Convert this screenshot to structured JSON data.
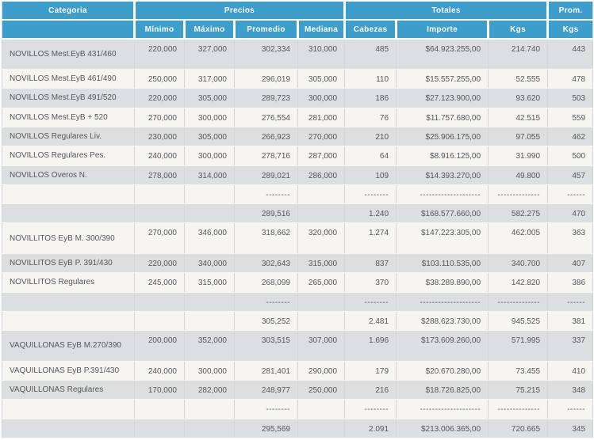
{
  "table": {
    "header": {
      "categoria": "Categoria",
      "precios": "Precios",
      "totales": "Totales",
      "prom": "Prom.",
      "sub": [
        "Mínimo",
        "Máximo",
        "Promedio",
        "Mediana",
        "Cabezas",
        "Importe",
        "Kgs",
        "Kgs"
      ]
    },
    "columns": [
      "categoria",
      "minimo",
      "maximo",
      "promedio",
      "mediana",
      "cabezas",
      "importe",
      "kgs",
      "prom-kgs"
    ],
    "rows": [
      {
        "type": "data",
        "tall": true,
        "cells": [
          "NOVILLOS Mest.EyB 431/460",
          "220,000",
          "327,000",
          "302,334",
          "310,000",
          "485",
          "$64.923.255,00",
          "214.740",
          "443"
        ]
      },
      {
        "type": "data",
        "tall": false,
        "cells": [
          "NOVILLOS Mest.EyB 461/490",
          "250,000",
          "317,000",
          "296,019",
          "305,000",
          "110",
          "$15.557.255,00",
          "52.555",
          "478"
        ]
      },
      {
        "type": "data",
        "tall": false,
        "cells": [
          "NOVILLOS Mest.EyB 491/520",
          "220,000",
          "305,000",
          "289,723",
          "300,000",
          "186",
          "$27.123.900,00",
          "93.620",
          "503"
        ]
      },
      {
        "type": "data",
        "tall": false,
        "cells": [
          "NOVILLOS Mest.EyB + 520",
          "270,000",
          "300,000",
          "276,554",
          "281,000",
          "76",
          "$11.757.680,00",
          "42.515",
          "559"
        ]
      },
      {
        "type": "data",
        "tall": false,
        "cells": [
          "NOVILLOS Regulares Liv.",
          "230,000",
          "305,000",
          "266,923",
          "270,000",
          "210",
          "$25.906.175,00",
          "97.055",
          "462"
        ]
      },
      {
        "type": "data",
        "tall": false,
        "cells": [
          "NOVILLOS Regulares Pes.",
          "240,000",
          "300,000",
          "278,716",
          "287,000",
          "64",
          "$8.916.125,00",
          "31.990",
          "500"
        ]
      },
      {
        "type": "data",
        "tall": false,
        "cells": [
          "NOVILLOS Overos N.",
          "278,000",
          "314,000",
          "289,021",
          "286,000",
          "109",
          "$14.393.270,00",
          "49.800",
          "457"
        ]
      },
      {
        "type": "dashes",
        "tall": false,
        "cells": [
          "",
          "",
          "",
          "--------",
          "",
          "--------",
          "--------------------",
          "--------------",
          "------"
        ]
      },
      {
        "type": "subtotal",
        "tall": false,
        "cells": [
          "",
          "",
          "",
          "289,516",
          "",
          "1.240",
          "$168.577.660,00",
          "582.275",
          "470"
        ]
      },
      {
        "type": "data",
        "tall": true,
        "cells": [
          "NOVILLITOS EyB M. 300/390",
          "270,000",
          "346,000",
          "318,662",
          "320,000",
          "1.274",
          "$147.223.305,00",
          "462.005",
          "363"
        ]
      },
      {
        "type": "data",
        "tall": false,
        "cells": [
          "NOVILLITOS EyB P. 391/430",
          "220,000",
          "340,000",
          "302,643",
          "315,000",
          "837",
          "$103.110.535,00",
          "340.700",
          "407"
        ]
      },
      {
        "type": "data",
        "tall": false,
        "cells": [
          "NOVILLITOS Regulares",
          "245,000",
          "315,000",
          "268,099",
          "265,000",
          "370",
          "$38.289.890,00",
          "142.820",
          "386"
        ]
      },
      {
        "type": "dashes",
        "tall": false,
        "cells": [
          "",
          "",
          "",
          "--------",
          "",
          "--------",
          "--------------------",
          "--------------",
          "------"
        ]
      },
      {
        "type": "subtotal",
        "tall": false,
        "cells": [
          "",
          "",
          "",
          "305,252",
          "",
          "2.481",
          "$288.623.730,00",
          "945.525",
          "381"
        ]
      },
      {
        "type": "data",
        "tall": true,
        "cells": [
          "VAQUILLONAS EyB M.270/390",
          "200,000",
          "352,000",
          "303,515",
          "307,000",
          "1.696",
          "$173.609.260,00",
          "571.995",
          "337"
        ]
      },
      {
        "type": "data",
        "tall": false,
        "cells": [
          "VAQUILLONAS EyB P.391/430",
          "240,000",
          "300,000",
          "281,401",
          "290,000",
          "179",
          "$20.670.280,00",
          "73.455",
          "410"
        ]
      },
      {
        "type": "data",
        "tall": false,
        "cells": [
          "VAQUILLONAS Regulares",
          "170,000",
          "282,000",
          "248,977",
          "250,000",
          "216",
          "$18.726.825,00",
          "75.215",
          "348"
        ]
      },
      {
        "type": "dashes",
        "tall": false,
        "cells": [
          "",
          "",
          "",
          "--------",
          "",
          "--------",
          "--------------------",
          "--------------",
          "------"
        ]
      },
      {
        "type": "subtotal",
        "tall": false,
        "cells": [
          "",
          "",
          "",
          "295,569",
          "",
          "2.091",
          "$213.006.365,00",
          "720.665",
          "345"
        ]
      }
    ]
  },
  "colors": {
    "header_bg": "#3d9ecb",
    "header_text": "#ffffff",
    "row_gray": "#dcdfe1",
    "row_cream": "#f7f5f0",
    "cell_text": "#54585b"
  }
}
